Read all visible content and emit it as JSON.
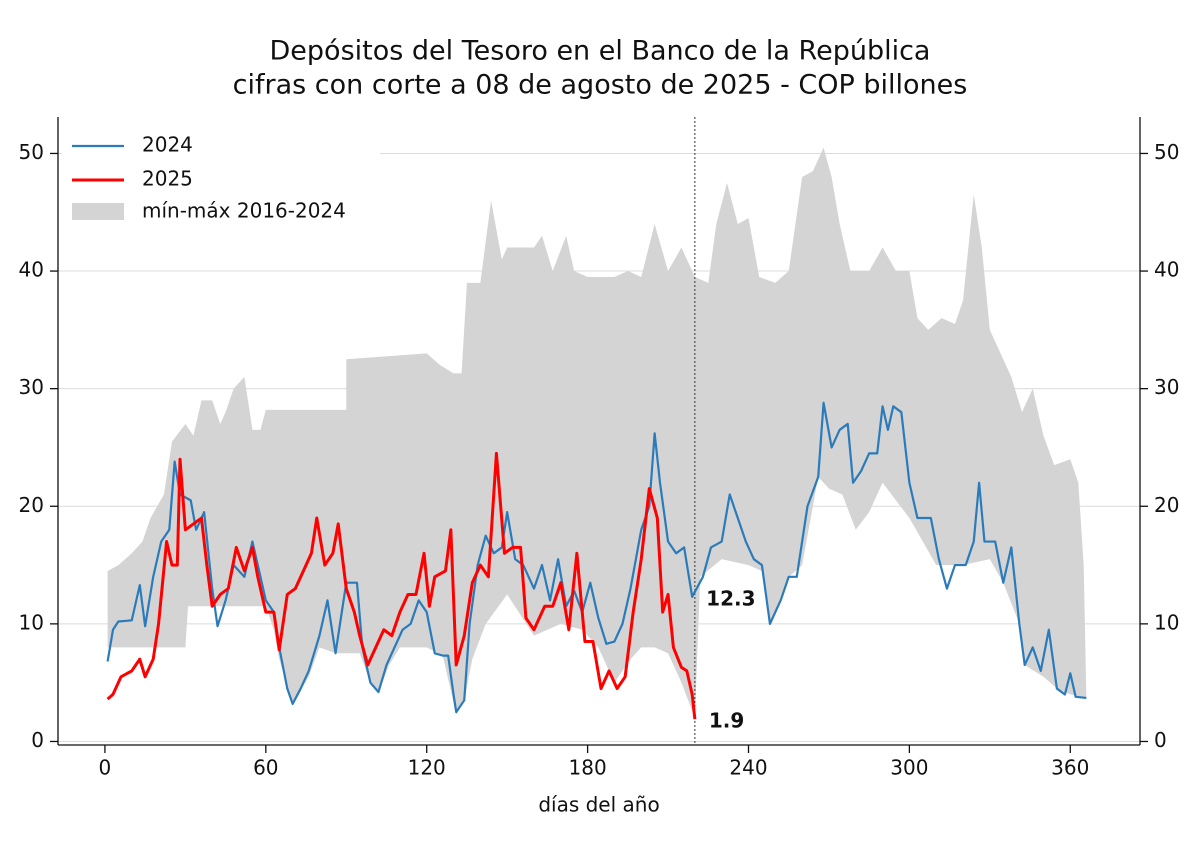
{
  "chart_data": {
    "type": "line",
    "title": [
      "Depósitos del Tesoro en el Banco de la República",
      "cifras con corte a 08 de agosto de 2025 - COP billones"
    ],
    "xlabel": "días del año",
    "xlim": [
      -17.5,
      386
    ],
    "ylim": [
      -0.3,
      53.1
    ],
    "y2lim": [
      -0.3,
      53.1
    ],
    "xticks": [
      0,
      60,
      120,
      180,
      240,
      300,
      360
    ],
    "yticks": [
      0,
      10,
      20,
      30,
      40,
      50
    ],
    "y2ticks": [
      0,
      10,
      20,
      30,
      40,
      50
    ],
    "grid": true,
    "legend": "upper left",
    "cutoff_x": 220,
    "series": [
      {
        "name": "2024",
        "color": "#2b7bba",
        "x": [
          1,
          3,
          5,
          10,
          13,
          15,
          18,
          21,
          24,
          26,
          28,
          32,
          34,
          37,
          40,
          42,
          45,
          48,
          52,
          55,
          57,
          60,
          63,
          65,
          68,
          70,
          73,
          76,
          80,
          83,
          86,
          90,
          94,
          96,
          99,
          102,
          105,
          108,
          111,
          114,
          117,
          120,
          123,
          126,
          128,
          130,
          131,
          134,
          136,
          139,
          142,
          145,
          148,
          150,
          153,
          156,
          160,
          163,
          166,
          169,
          172,
          175,
          178,
          181,
          184,
          187,
          190,
          193,
          196,
          200,
          203,
          205,
          207,
          210,
          213,
          216,
          219,
          223,
          226,
          230,
          233,
          236,
          239,
          242,
          245,
          248,
          252,
          255,
          258,
          262,
          266,
          268,
          271,
          274,
          277,
          279,
          282,
          285,
          288,
          290,
          292,
          294,
          297,
          300,
          303,
          308,
          311,
          314,
          317,
          321,
          324,
          326,
          328,
          332,
          335,
          338,
          341,
          343,
          346,
          349,
          352,
          355,
          358,
          360,
          362,
          366
        ],
        "values": [
          6.8,
          9.5,
          10.2,
          10.3,
          13.3,
          9.8,
          14,
          17,
          18,
          23.8,
          21,
          20.5,
          18,
          19.5,
          13,
          9.8,
          12,
          15,
          14,
          17,
          15,
          12,
          11,
          8,
          4.5,
          3.2,
          4.5,
          6,
          9,
          12,
          7.5,
          13.5,
          13.5,
          8,
          5,
          4.2,
          6.5,
          8,
          9.5,
          10,
          12,
          11,
          7.5,
          7.3,
          7.3,
          4,
          2.5,
          3.5,
          10,
          15,
          17.5,
          16,
          16.5,
          19.5,
          15.5,
          15,
          13,
          15,
          12,
          15.5,
          11.5,
          12.8,
          11,
          13.5,
          10.5,
          8.3,
          8.5,
          10,
          13,
          18,
          20,
          26.2,
          22,
          17,
          16,
          16.5,
          12.3,
          14,
          16.5,
          17,
          21,
          19,
          17,
          15.5,
          15,
          10,
          12,
          14,
          14,
          20,
          22.5,
          28.8,
          25,
          26.5,
          27,
          22,
          23,
          24.5,
          24.5,
          28.5,
          26.5,
          28.5,
          28,
          22,
          19,
          19,
          15.5,
          13,
          15,
          15,
          17,
          22,
          17,
          17,
          13.5,
          16.5,
          10,
          6.5,
          8,
          6,
          9.5,
          4.5,
          4,
          5.8,
          3.8,
          3.7
        ]
      },
      {
        "name": "2025",
        "color": "#ff0000",
        "x": [
          1,
          3,
          6,
          10,
          13,
          15,
          18,
          20,
          23,
          25,
          27,
          28,
          30,
          33,
          36,
          38,
          40,
          43,
          46,
          49,
          52,
          55,
          57,
          60,
          63,
          65,
          68,
          71,
          74,
          77,
          79,
          82,
          85,
          87,
          90,
          93,
          95,
          98,
          101,
          104,
          107,
          110,
          113,
          116,
          119,
          121,
          123,
          127,
          129,
          131,
          134,
          137,
          140,
          143,
          146,
          149,
          152,
          155,
          157,
          160,
          164,
          167,
          170,
          173,
          176,
          179,
          182,
          185,
          188,
          191,
          194,
          197,
          200,
          203,
          206,
          208,
          210,
          212,
          215,
          217,
          219,
          220
        ],
        "values": [
          3.6,
          4,
          5.5,
          6,
          7,
          5.5,
          7,
          10,
          17,
          15,
          15,
          24,
          18,
          18.5,
          19,
          15,
          11.5,
          12.5,
          13,
          16.5,
          14.5,
          16.5,
          14,
          11,
          11,
          7.8,
          12.5,
          13,
          14.5,
          16,
          19,
          15,
          16,
          18.5,
          13,
          11,
          9,
          6.5,
          8,
          9.5,
          9,
          11,
          12.5,
          12.5,
          16,
          11.5,
          14,
          14.5,
          18,
          6.5,
          9,
          13.5,
          15,
          14,
          24.5,
          16,
          16.5,
          16.5,
          10.5,
          9.5,
          11.5,
          11.5,
          13.5,
          9.5,
          16,
          8.5,
          8.5,
          4.5,
          6,
          4.5,
          5.5,
          11,
          15.5,
          21.5,
          19,
          11,
          12.5,
          8,
          6.3,
          6,
          4,
          1.9
        ]
      }
    ],
    "band": {
      "name": "mín-máx 2016-2024",
      "color": "#d4d4d4",
      "upper": {
        "x": [
          1,
          5,
          10,
          14,
          17,
          22,
          25,
          30,
          33,
          36,
          40,
          43,
          45,
          48,
          52,
          55,
          58,
          60,
          90,
          90,
          120,
          125,
          130,
          133,
          135,
          140,
          144,
          148,
          150,
          155,
          160,
          163,
          167,
          172,
          175,
          180,
          190,
          195,
          200,
          205,
          210,
          215,
          220,
          225,
          228,
          232,
          236,
          240,
          244,
          250,
          255,
          260,
          264,
          268,
          271,
          274,
          278,
          285,
          290,
          295,
          300,
          303,
          307,
          312,
          317,
          320,
          324,
          327,
          330,
          334,
          338,
          342,
          346,
          350,
          354,
          360,
          363,
          365,
          366
        ],
        "values": [
          14.5,
          15,
          16,
          17,
          19,
          21,
          25.5,
          27,
          26,
          29,
          29,
          27,
          28,
          30,
          31,
          26.5,
          26.5,
          28.2,
          28.2,
          32.5,
          33,
          32,
          31.3,
          31.3,
          39,
          39,
          46,
          41,
          42,
          42,
          42,
          43,
          40,
          43,
          40,
          39.5,
          39.5,
          40,
          39.5,
          44,
          40,
          42,
          39.5,
          39,
          44,
          47.5,
          44,
          44.5,
          39.5,
          39,
          40,
          48,
          48.5,
          50.5,
          48,
          44,
          40,
          40,
          42,
          40,
          40,
          36,
          35,
          36,
          35.5,
          37.5,
          46.5,
          42,
          35,
          33,
          31,
          28,
          30,
          26,
          23.5,
          24,
          22,
          15,
          3.7
        ]
      },
      "lower": {
        "x": [
          1,
          30,
          31,
          60,
          63,
          65,
          70,
          76,
          80,
          86,
          95,
          99,
          102,
          106,
          110,
          120,
          126,
          131,
          134,
          137,
          142,
          150,
          160,
          170,
          178,
          184,
          190,
          196,
          200,
          205,
          210,
          215,
          220,
          222,
          230,
          240,
          245,
          248,
          255,
          260,
          266,
          270,
          275,
          280,
          285,
          290,
          295,
          300,
          310,
          320,
          330,
          335,
          341,
          343,
          350,
          355,
          360,
          366
        ],
        "values": [
          8,
          8,
          11.5,
          11.5,
          9.5,
          7,
          3.2,
          5.5,
          8,
          7.5,
          7.5,
          5,
          4.2,
          6.5,
          8,
          8,
          7.3,
          2.3,
          3.5,
          7,
          10,
          12.5,
          9,
          10,
          9.5,
          8,
          5,
          7,
          8,
          8,
          7.5,
          5,
          2,
          14,
          15.5,
          15,
          14.5,
          10,
          14,
          15,
          22.5,
          21.5,
          21,
          18,
          19.5,
          22,
          20.5,
          19,
          15,
          15,
          15.5,
          13.5,
          10,
          6.5,
          5.5,
          4.5,
          4,
          3.7
        ]
      }
    },
    "annotations": [
      {
        "text": "12.3",
        "x": 219,
        "y": 12.3,
        "color": "#2b7bba"
      },
      {
        "text": "1.9",
        "x": 220,
        "y": 1.9,
        "color": "#ff0000"
      }
    ]
  }
}
